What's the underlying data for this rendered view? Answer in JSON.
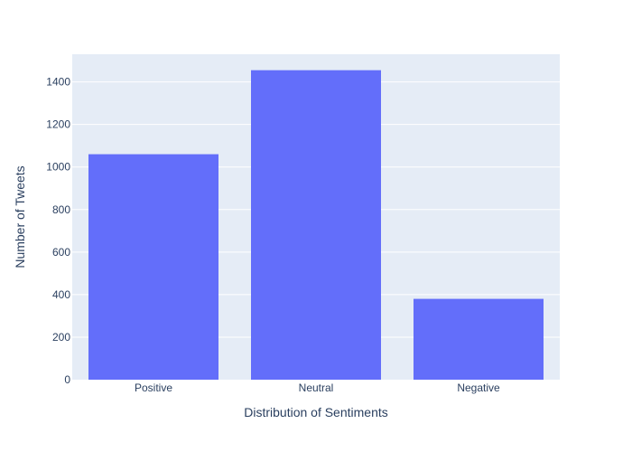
{
  "chart_data": {
    "type": "bar",
    "title": "",
    "xlabel": "Distribution of Sentiments",
    "ylabel": "Number of Tweets",
    "categories": [
      "Positive",
      "Neutral",
      "Negative"
    ],
    "values": [
      1060,
      1455,
      380
    ],
    "ylim": [
      0,
      1530
    ],
    "yticks": [
      0,
      200,
      400,
      600,
      800,
      1000,
      1200,
      1400
    ],
    "grid": true,
    "legend": "none",
    "colors": {
      "bar": "#636efa",
      "plot_background": "#e5ecf6",
      "grid": "#ffffff",
      "text": "#2a3f5f"
    }
  }
}
